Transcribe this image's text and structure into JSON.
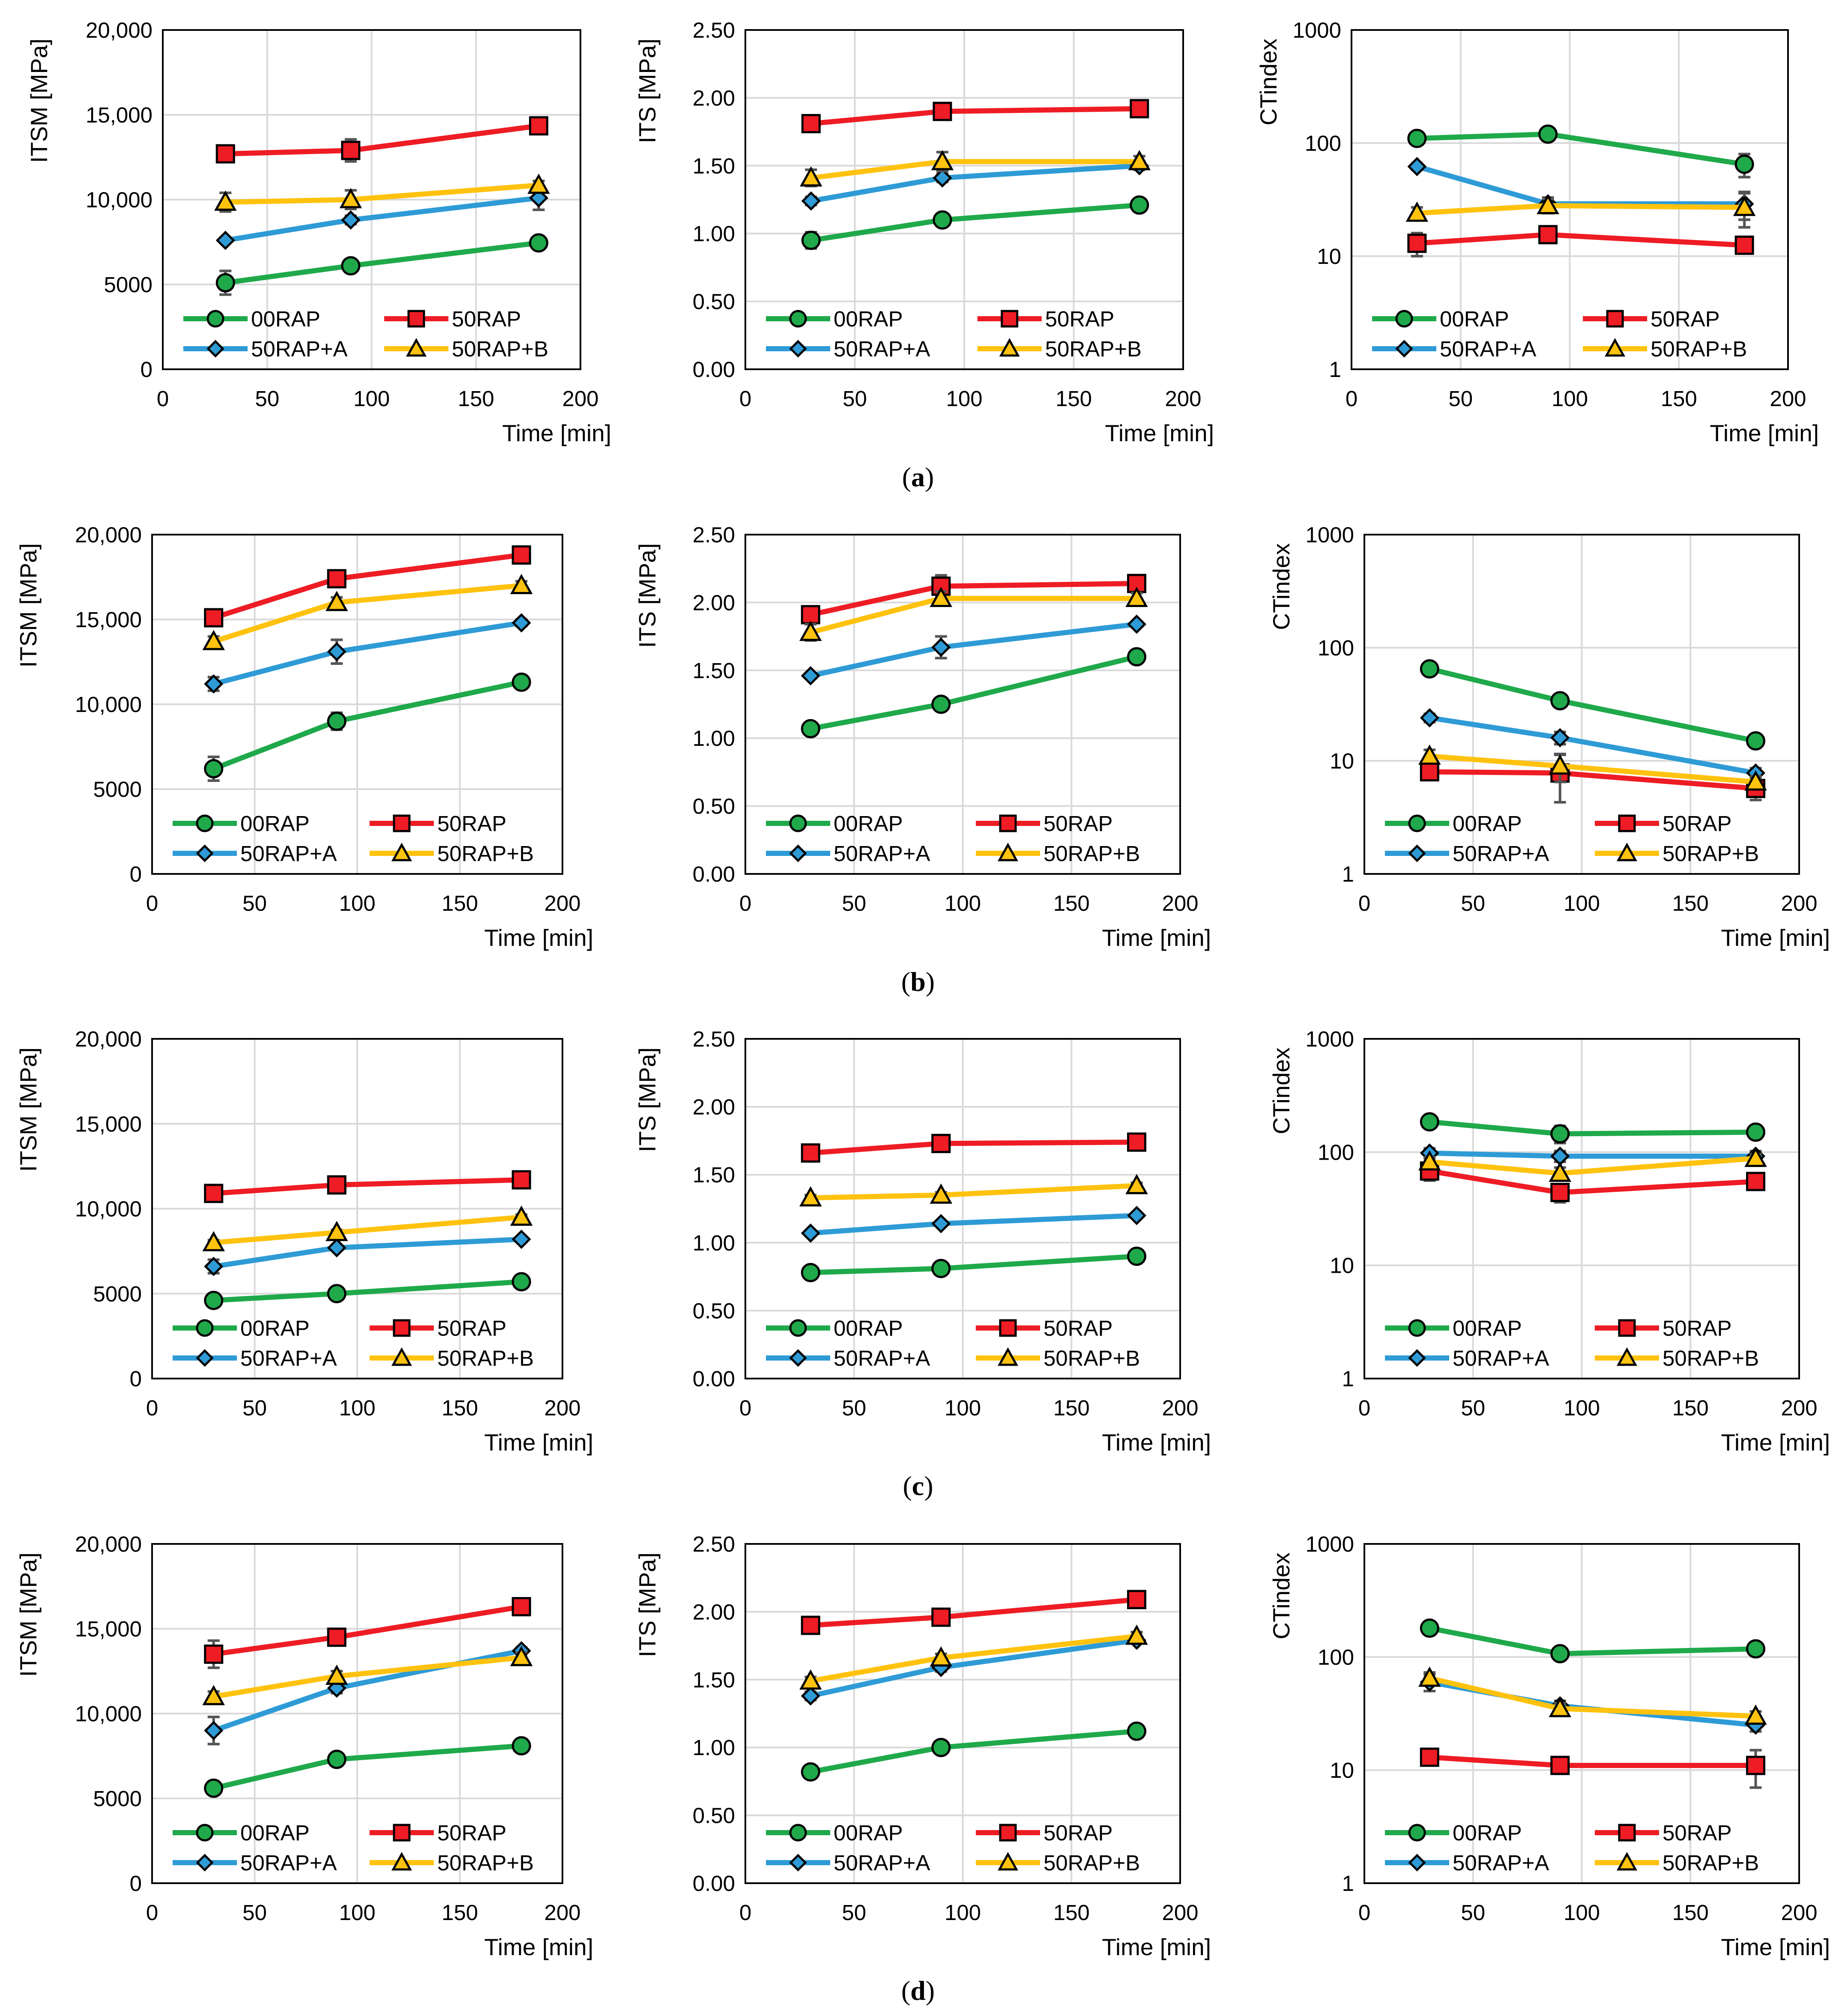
{
  "figure": {
    "series_order": [
      "00RAP",
      "50RAP",
      "50RAP+A",
      "50RAP+B"
    ],
    "series_colors": {
      "00RAP": "#1fa94b",
      "50RAP": "#ee1c24",
      "50RAP+A": "#2e9bd6",
      "50RAP+B": "#ffc20e"
    },
    "series_markers": {
      "00RAP": "circle",
      "50RAP": "square",
      "50RAP+A": "diamond",
      "50RAP+B": "triangle"
    },
    "panel_labels": [
      "a",
      "b",
      "c",
      "d"
    ],
    "label_open": "(",
    "label_close": ")"
  },
  "chart_data": [
    {
      "panel": "a",
      "type": "line",
      "ylabel": "ITSM [MPa]",
      "xlabel": "Time [min]",
      "xlim": [
        0,
        200
      ],
      "xticks": [
        "0",
        "50",
        "100",
        "150",
        "200"
      ],
      "ylim": [
        0,
        20000
      ],
      "yticks": [
        "0",
        "5000",
        "10,000",
        "15,000",
        "20,000"
      ],
      "yscale": "linear",
      "grid": true,
      "x": [
        30,
        90,
        180
      ],
      "series": [
        {
          "name": "00RAP",
          "values": [
            5100,
            6100,
            7450
          ],
          "err": [
            700,
            250,
            200
          ]
        },
        {
          "name": "50RAP",
          "values": [
            12700,
            12900,
            14350
          ],
          "err": [
            250,
            650,
            200
          ]
        },
        {
          "name": "50RAP+A",
          "values": [
            7600,
            8800,
            10100
          ],
          "err": [
            150,
            250,
            700
          ]
        },
        {
          "name": "50RAP+B",
          "values": [
            9850,
            10000,
            10850
          ],
          "err": [
            550,
            550,
            250
          ]
        }
      ]
    },
    {
      "panel": "a",
      "type": "line",
      "ylabel": "ITS [MPa]",
      "xlabel": "Time [min]",
      "xlim": [
        0,
        200
      ],
      "xticks": [
        "0",
        "50",
        "100",
        "150",
        "200"
      ],
      "ylim": [
        0,
        2.5
      ],
      "yticks": [
        "0.00",
        "0.50",
        "1.00",
        "1.50",
        "2.00",
        "2.50"
      ],
      "yscale": "linear",
      "grid": true,
      "x": [
        30,
        90,
        180
      ],
      "series": [
        {
          "name": "00RAP",
          "values": [
            0.95,
            1.1,
            1.21
          ],
          "err": [
            0.06,
            0.02,
            0.03
          ]
        },
        {
          "name": "50RAP",
          "values": [
            1.81,
            1.9,
            1.92
          ],
          "err": [
            0.02,
            0.03,
            0.02
          ]
        },
        {
          "name": "50RAP+A",
          "values": [
            1.24,
            1.41,
            1.5
          ],
          "err": [
            0.03,
            0.03,
            0.03
          ]
        },
        {
          "name": "50RAP+B",
          "values": [
            1.41,
            1.53,
            1.53
          ],
          "err": [
            0.06,
            0.07,
            0.04
          ]
        }
      ]
    },
    {
      "panel": "a",
      "type": "line",
      "ylabel": "CTindex",
      "xlabel": "Time [min]",
      "xlim": [
        0,
        200
      ],
      "xticks": [
        "0",
        "50",
        "100",
        "150",
        "200"
      ],
      "ylim": [
        1,
        1000
      ],
      "yticks": [
        "1",
        "10",
        "100",
        "1000"
      ],
      "yscale": "log",
      "grid": true,
      "x": [
        30,
        90,
        180
      ],
      "series": [
        {
          "name": "00RAP",
          "values": [
            110,
            120,
            65
          ],
          "err": [
            10,
            15,
            15
          ]
        },
        {
          "name": "50RAP",
          "values": [
            13,
            15.5,
            12.5
          ],
          "err": [
            3,
            2,
            1.5
          ]
        },
        {
          "name": "50RAP+A",
          "values": [
            62,
            29,
            29
          ],
          "err": [
            4,
            4,
            8
          ]
        },
        {
          "name": "50RAP+B",
          "values": [
            24,
            28,
            27
          ],
          "err": [
            3,
            4,
            9
          ]
        }
      ]
    },
    {
      "panel": "b",
      "type": "line",
      "ylabel": "ITSM [MPa]",
      "xlabel": "Time [min]",
      "xlim": [
        0,
        200
      ],
      "xticks": [
        "0",
        "50",
        "100",
        "150",
        "200"
      ],
      "ylim": [
        0,
        20000
      ],
      "yticks": [
        "0",
        "5000",
        "10,000",
        "15,000",
        "20,000"
      ],
      "yscale": "linear",
      "grid": true,
      "x": [
        30,
        90,
        180
      ],
      "series": [
        {
          "name": "00RAP",
          "values": [
            6200,
            9000,
            11300
          ],
          "err": [
            700,
            500,
            200
          ]
        },
        {
          "name": "50RAP",
          "values": [
            15100,
            17400,
            18800
          ],
          "err": [
            250,
            250,
            200
          ]
        },
        {
          "name": "50RAP+A",
          "values": [
            11200,
            13100,
            14800
          ],
          "err": [
            400,
            700,
            200
          ]
        },
        {
          "name": "50RAP+B",
          "values": [
            13700,
            16000,
            17000
          ],
          "err": [
            300,
            300,
            250
          ]
        }
      ]
    },
    {
      "panel": "b",
      "type": "line",
      "ylabel": "ITS [MPa]",
      "xlabel": "Time [min]",
      "xlim": [
        0,
        200
      ],
      "xticks": [
        "0",
        "50",
        "100",
        "150",
        "200"
      ],
      "ylim": [
        0,
        2.5
      ],
      "yticks": [
        "0.00",
        "0.50",
        "1.00",
        "1.50",
        "2.00",
        "2.50"
      ],
      "yscale": "linear",
      "grid": true,
      "x": [
        30,
        90,
        180
      ],
      "series": [
        {
          "name": "00RAP",
          "values": [
            1.07,
            1.25,
            1.6
          ],
          "err": [
            0.04,
            0.02,
            0.02
          ]
        },
        {
          "name": "50RAP",
          "values": [
            1.91,
            2.12,
            2.14
          ],
          "err": [
            0.04,
            0.08,
            0.03
          ]
        },
        {
          "name": "50RAP+A",
          "values": [
            1.46,
            1.67,
            1.84
          ],
          "err": [
            0.02,
            0.08,
            0.02
          ]
        },
        {
          "name": "50RAP+B",
          "values": [
            1.78,
            2.03,
            2.03
          ],
          "err": [
            0.06,
            0.05,
            0.04
          ]
        }
      ]
    },
    {
      "panel": "b",
      "type": "line",
      "ylabel": "CTindex",
      "xlabel": "Time [min]",
      "xlim": [
        0,
        200
      ],
      "xticks": [
        "0",
        "50",
        "100",
        "150",
        "200"
      ],
      "ylim": [
        1,
        1000
      ],
      "yticks": [
        "1",
        "10",
        "100",
        "1000"
      ],
      "yscale": "log",
      "grid": true,
      "x": [
        30,
        90,
        180
      ],
      "series": [
        {
          "name": "00RAP",
          "values": [
            65,
            34,
            15
          ],
          "err": [
            5,
            3,
            1
          ]
        },
        {
          "name": "50RAP",
          "values": [
            8,
            7.8,
            5.7
          ],
          "err": [
            1,
            3.5,
            1.2
          ]
        },
        {
          "name": "50RAP+A",
          "values": [
            24,
            16,
            7.8
          ],
          "err": [
            2,
            2,
            0.8
          ]
        },
        {
          "name": "50RAP+B",
          "values": [
            11,
            9,
            6.5
          ],
          "err": [
            1.5,
            2.5,
            0.8
          ]
        }
      ]
    },
    {
      "panel": "c",
      "type": "line",
      "ylabel": "ITSM [MPa]",
      "xlabel": "Time [min]",
      "xlim": [
        0,
        200
      ],
      "xticks": [
        "0",
        "50",
        "100",
        "150",
        "200"
      ],
      "ylim": [
        0,
        20000
      ],
      "yticks": [
        "0",
        "5000",
        "10,000",
        "15,000",
        "20,000"
      ],
      "yscale": "linear",
      "grid": true,
      "x": [
        30,
        90,
        180
      ],
      "series": [
        {
          "name": "00RAP",
          "values": [
            4600,
            5000,
            5700
          ],
          "err": [
            150,
            150,
            150
          ]
        },
        {
          "name": "50RAP",
          "values": [
            10900,
            11400,
            11700
          ],
          "err": [
            150,
            150,
            150
          ]
        },
        {
          "name": "50RAP+A",
          "values": [
            6600,
            7700,
            8200
          ],
          "err": [
            400,
            150,
            150
          ]
        },
        {
          "name": "50RAP+B",
          "values": [
            8000,
            8600,
            9500
          ],
          "err": [
            150,
            150,
            150
          ]
        }
      ]
    },
    {
      "panel": "c",
      "type": "line",
      "ylabel": "ITS [MPa]",
      "xlabel": "Time [min]",
      "xlim": [
        0,
        200
      ],
      "xticks": [
        "0",
        "50",
        "100",
        "150",
        "200"
      ],
      "ylim": [
        0,
        2.5
      ],
      "yticks": [
        "0.00",
        "0.50",
        "1.00",
        "1.50",
        "2.00",
        "2.50"
      ],
      "yscale": "linear",
      "grid": true,
      "x": [
        30,
        90,
        180
      ],
      "series": [
        {
          "name": "00RAP",
          "values": [
            0.78,
            0.81,
            0.9
          ],
          "err": [
            0.02,
            0.02,
            0.02
          ]
        },
        {
          "name": "50RAP",
          "values": [
            1.66,
            1.73,
            1.74
          ],
          "err": [
            0.02,
            0.02,
            0.02
          ]
        },
        {
          "name": "50RAP+A",
          "values": [
            1.07,
            1.14,
            1.2
          ],
          "err": [
            0.02,
            0.02,
            0.02
          ]
        },
        {
          "name": "50RAP+B",
          "values": [
            1.33,
            1.35,
            1.42
          ],
          "err": [
            0.02,
            0.02,
            0.02
          ]
        }
      ]
    },
    {
      "panel": "c",
      "type": "line",
      "ylabel": "CTindex",
      "xlabel": "Time [min]",
      "xlim": [
        0,
        200
      ],
      "xticks": [
        "0",
        "50",
        "100",
        "150",
        "200"
      ],
      "ylim": [
        1,
        1000
      ],
      "yticks": [
        "1",
        "10",
        "100",
        "1000"
      ],
      "yscale": "log",
      "grid": true,
      "x": [
        30,
        90,
        180
      ],
      "series": [
        {
          "name": "00RAP",
          "values": [
            185,
            145,
            150
          ],
          "err": [
            15,
            25,
            15
          ]
        },
        {
          "name": "50RAP",
          "values": [
            68,
            44,
            55
          ],
          "err": [
            12,
            8,
            8
          ]
        },
        {
          "name": "50RAP+A",
          "values": [
            98,
            92,
            92
          ],
          "err": [
            10,
            10,
            10
          ]
        },
        {
          "name": "50RAP+B",
          "values": [
            82,
            65,
            88
          ],
          "err": [
            8,
            8,
            8
          ]
        }
      ]
    },
    {
      "panel": "d",
      "type": "line",
      "ylabel": "ITSM [MPa]",
      "xlabel": "Time [min]",
      "xlim": [
        0,
        200
      ],
      "xticks": [
        "0",
        "50",
        "100",
        "150",
        "200"
      ],
      "ylim": [
        0,
        20000
      ],
      "yticks": [
        "0",
        "5000",
        "10,000",
        "15,000",
        "20,000"
      ],
      "yscale": "linear",
      "grid": true,
      "x": [
        30,
        90,
        180
      ],
      "series": [
        {
          "name": "00RAP",
          "values": [
            5600,
            7300,
            8100
          ],
          "err": [
            150,
            150,
            150
          ]
        },
        {
          "name": "50RAP",
          "values": [
            13500,
            14500,
            16300
          ],
          "err": [
            800,
            200,
            200
          ]
        },
        {
          "name": "50RAP+A",
          "values": [
            9000,
            11500,
            13700
          ],
          "err": [
            800,
            300,
            200
          ]
        },
        {
          "name": "50RAP+B",
          "values": [
            11000,
            12200,
            13300
          ],
          "err": [
            300,
            300,
            300
          ]
        }
      ]
    },
    {
      "panel": "d",
      "type": "line",
      "ylabel": "ITS [MPa]",
      "xlabel": "Time [min]",
      "xlim": [
        0,
        200
      ],
      "xticks": [
        "0",
        "50",
        "100",
        "150",
        "200"
      ],
      "ylim": [
        0,
        2.5
      ],
      "yticks": [
        "0.00",
        "0.50",
        "1.00",
        "1.50",
        "2.00",
        "2.50"
      ],
      "yscale": "linear",
      "grid": true,
      "x": [
        30,
        90,
        180
      ],
      "series": [
        {
          "name": "00RAP",
          "values": [
            0.82,
            1.0,
            1.12
          ],
          "err": [
            0.02,
            0.02,
            0.02
          ]
        },
        {
          "name": "50RAP",
          "values": [
            1.9,
            1.96,
            2.09
          ],
          "err": [
            0.04,
            0.04,
            0.02
          ]
        },
        {
          "name": "50RAP+A",
          "values": [
            1.38,
            1.59,
            1.79
          ],
          "err": [
            0.03,
            0.03,
            0.02
          ]
        },
        {
          "name": "50RAP+B",
          "values": [
            1.49,
            1.66,
            1.82
          ],
          "err": [
            0.03,
            0.03,
            0.03
          ]
        }
      ]
    },
    {
      "panel": "d",
      "type": "line",
      "ylabel": "CTindex",
      "xlabel": "Time [min]",
      "xlim": [
        0,
        200
      ],
      "xticks": [
        "0",
        "50",
        "100",
        "150",
        "200"
      ],
      "ylim": [
        1,
        1000
      ],
      "yticks": [
        "1",
        "10",
        "100",
        "1000"
      ],
      "yscale": "log",
      "grid": true,
      "x": [
        30,
        90,
        180
      ],
      "series": [
        {
          "name": "00RAP",
          "values": [
            180,
            107,
            118
          ],
          "err": [
            10,
            8,
            8
          ]
        },
        {
          "name": "50RAP",
          "values": [
            13,
            11,
            11
          ],
          "err": [
            1,
            1,
            4
          ]
        },
        {
          "name": "50RAP+A",
          "values": [
            60,
            37,
            25
          ],
          "err": [
            10,
            4,
            3
          ]
        },
        {
          "name": "50RAP+B",
          "values": [
            65,
            35,
            30
          ],
          "err": [
            8,
            4,
            3
          ]
        }
      ]
    }
  ]
}
